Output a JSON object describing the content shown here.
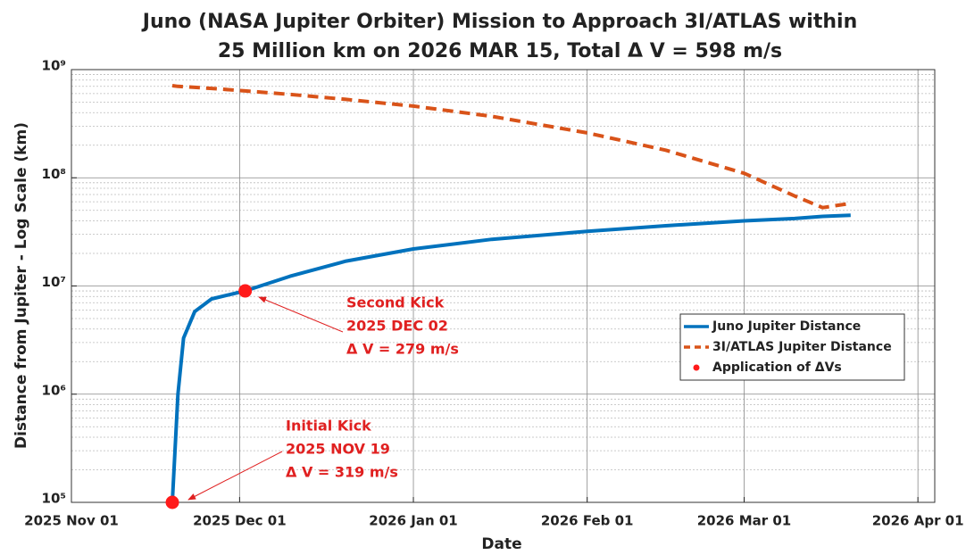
{
  "chart_data": {
    "type": "line",
    "title": [
      "Juno (NASA Jupiter Orbiter) Mission to Approach 3I/ATLAS within",
      "25 Million km on 2026 MAR 15, Total Δ V = 598 m/s"
    ],
    "x_label": "Date",
    "y_label": "Distance from Jupiter - Log Scale (km)",
    "log_y": true,
    "grid": true,
    "legend": "right",
    "xlim": [
      "2025-11-01",
      "2026-04-04"
    ],
    "xticks": [
      {
        "value": "2025-11-01",
        "label": "2025 Nov 01"
      },
      {
        "value": "2025-12-01",
        "label": "2025 Dec 01"
      },
      {
        "value": "2026-01-01",
        "label": "2026 Jan 01"
      },
      {
        "value": "2026-02-01",
        "label": "2026 Feb 01"
      },
      {
        "value": "2026-03-01",
        "label": "2026 Mar 01"
      },
      {
        "value": "2026-04-01",
        "label": "2026 Apr 01"
      }
    ],
    "ylim": [
      100000,
      1000000000
    ],
    "yticks": [
      {
        "value": 100000,
        "label": "10⁵"
      },
      {
        "value": 1000000,
        "label": "10⁶"
      },
      {
        "value": 10000000,
        "label": "10⁷"
      },
      {
        "value": 100000000,
        "label": "10⁸"
      },
      {
        "value": 1000000000,
        "label": "10⁹"
      }
    ],
    "series": [
      {
        "name": "Juno Jupiter Distance",
        "color": "#0072bd",
        "style": "solid",
        "x": [
          "2025-11-19",
          "2025-11-20",
          "2025-11-21",
          "2025-11-23",
          "2025-11-26",
          "2025-12-02",
          "2025-12-10",
          "2025-12-20",
          "2026-01-01",
          "2026-01-15",
          "2026-02-01",
          "2026-02-15",
          "2026-03-01",
          "2026-03-10",
          "2026-03-15",
          "2026-03-20"
        ],
        "values": [
          100000,
          1000000,
          3300000,
          5800000,
          7600000,
          9000000,
          12300000,
          17000000,
          22000000,
          27000000,
          32000000,
          36000000,
          40000000,
          42000000,
          44000000,
          45000000
        ]
      },
      {
        "name": "3I/ATLAS Jupiter Distance",
        "color": "#d95319",
        "style": "dashed",
        "x": [
          "2025-11-19",
          "2025-11-20",
          "2025-11-21",
          "2025-11-23",
          "2025-11-26",
          "2025-12-02",
          "2025-12-10",
          "2025-12-20",
          "2026-01-01",
          "2026-01-15",
          "2026-02-01",
          "2026-02-15",
          "2026-03-01",
          "2026-03-10",
          "2026-03-15",
          "2026-03-20"
        ],
        "values": [
          710000000,
          700000000,
          695000000,
          685000000,
          670000000,
          635000000,
          590000000,
          530000000,
          460000000,
          370000000,
          260000000,
          180000000,
          110000000,
          68000000,
          53000000,
          58000000
        ]
      },
      {
        "name": "Application of ΔVs",
        "color": "#ff1a1a",
        "style": "points",
        "x": [
          "2025-11-19",
          "2025-12-02"
        ],
        "values": [
          100000,
          9000000
        ]
      }
    ],
    "annotations": [
      [
        "Second Kick",
        "2025 DEC 02",
        "Δ V = 279 m/s"
      ],
      [
        "Initial Kick",
        "2025 NOV 19",
        "Δ V = 319 m/s"
      ]
    ]
  }
}
